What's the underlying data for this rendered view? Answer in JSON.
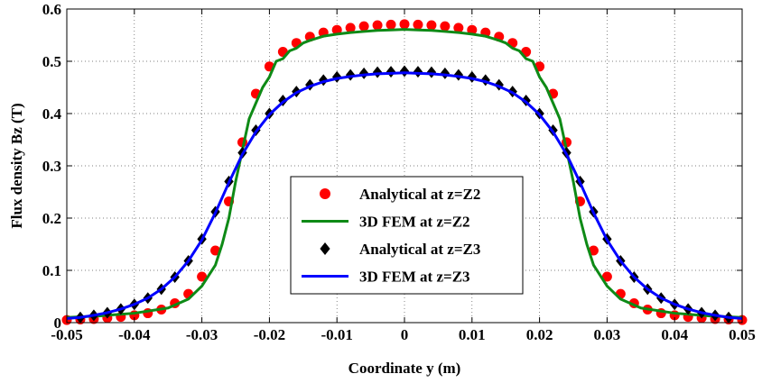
{
  "chart_data": {
    "type": "scatter",
    "xlabel": "Coordinate y (m)",
    "ylabel": "Flux density Bz (T)",
    "xlim": [
      -0.05,
      0.05
    ],
    "ylim": [
      0,
      0.6
    ],
    "x_ticks": [
      "-0.05",
      "-0.04",
      "-0.03",
      "-0.02",
      "-0.01",
      "0",
      "0.01",
      "0.02",
      "0.03",
      "0.04",
      "0.05"
    ],
    "y_ticks": [
      "0",
      "0.1",
      "0.2",
      "0.3",
      "0.4",
      "0.5",
      "0.6"
    ],
    "grid": true,
    "legend_position": "center",
    "series": [
      {
        "name": "Analytical at z=Z2",
        "style": "markers",
        "marker": "circle",
        "color": "#ff0000",
        "x": [
          -0.05,
          -0.048,
          -0.046,
          -0.044,
          -0.042,
          -0.04,
          -0.038,
          -0.036,
          -0.034,
          -0.032,
          -0.03,
          -0.028,
          -0.026,
          -0.024,
          -0.022,
          -0.02,
          -0.018,
          -0.016,
          -0.014,
          -0.012,
          -0.01,
          -0.008,
          -0.006,
          -0.004,
          -0.002,
          0,
          0.002,
          0.004,
          0.006,
          0.008,
          0.01,
          0.012,
          0.014,
          0.016,
          0.018,
          0.02,
          0.022,
          0.024,
          0.026,
          0.028,
          0.03,
          0.032,
          0.034,
          0.036,
          0.038,
          0.04,
          0.042,
          0.044,
          0.046,
          0.048,
          0.05
        ],
        "y": [
          0.005,
          0.006,
          0.007,
          0.009,
          0.011,
          0.014,
          0.018,
          0.025,
          0.037,
          0.055,
          0.088,
          0.138,
          0.232,
          0.345,
          0.438,
          0.49,
          0.518,
          0.535,
          0.547,
          0.555,
          0.56,
          0.564,
          0.567,
          0.569,
          0.57,
          0.571,
          0.57,
          0.569,
          0.567,
          0.564,
          0.56,
          0.555,
          0.547,
          0.535,
          0.518,
          0.49,
          0.438,
          0.345,
          0.232,
          0.138,
          0.088,
          0.055,
          0.037,
          0.025,
          0.018,
          0.014,
          0.011,
          0.009,
          0.007,
          0.006,
          0.005
        ]
      },
      {
        "name": "3D FEM at z=Z2",
        "style": "line",
        "color": "#0e8a16",
        "x": [
          -0.05,
          -0.045,
          -0.04,
          -0.035,
          -0.032,
          -0.03,
          -0.028,
          -0.027,
          -0.026,
          -0.025,
          -0.024,
          -0.023,
          -0.022,
          -0.021,
          -0.02,
          -0.019,
          -0.018,
          -0.017,
          -0.016,
          -0.015,
          -0.014,
          -0.012,
          -0.01,
          -0.008,
          -0.006,
          -0.004,
          -0.002,
          0,
          0.002,
          0.004,
          0.006,
          0.008,
          0.01,
          0.012,
          0.014,
          0.015,
          0.016,
          0.017,
          0.018,
          0.019,
          0.02,
          0.021,
          0.022,
          0.023,
          0.024,
          0.025,
          0.026,
          0.027,
          0.028,
          0.03,
          0.032,
          0.035,
          0.04,
          0.045,
          0.05
        ],
        "y": [
          0.01,
          0.013,
          0.018,
          0.028,
          0.045,
          0.07,
          0.11,
          0.15,
          0.2,
          0.27,
          0.33,
          0.39,
          0.42,
          0.45,
          0.47,
          0.5,
          0.505,
          0.52,
          0.525,
          0.535,
          0.54,
          0.548,
          0.552,
          0.555,
          0.557,
          0.559,
          0.56,
          0.561,
          0.56,
          0.559,
          0.557,
          0.555,
          0.552,
          0.548,
          0.54,
          0.535,
          0.525,
          0.52,
          0.505,
          0.5,
          0.47,
          0.45,
          0.42,
          0.39,
          0.33,
          0.27,
          0.2,
          0.15,
          0.11,
          0.07,
          0.045,
          0.028,
          0.018,
          0.013,
          0.01
        ]
      },
      {
        "name": "Analytical at z=Z3",
        "style": "markers",
        "marker": "diamond",
        "color": "#000000",
        "x": [
          -0.048,
          -0.046,
          -0.044,
          -0.042,
          -0.04,
          -0.038,
          -0.036,
          -0.034,
          -0.032,
          -0.03,
          -0.028,
          -0.026,
          -0.024,
          -0.022,
          -0.02,
          -0.018,
          -0.016,
          -0.014,
          -0.012,
          -0.01,
          -0.008,
          -0.006,
          -0.004,
          -0.002,
          0,
          0.002,
          0.004,
          0.006,
          0.008,
          0.01,
          0.012,
          0.014,
          0.016,
          0.018,
          0.02,
          0.022,
          0.024,
          0.026,
          0.028,
          0.03,
          0.032,
          0.034,
          0.036,
          0.038,
          0.04,
          0.042,
          0.044,
          0.046,
          0.048
        ],
        "y": [
          0.01,
          0.014,
          0.019,
          0.026,
          0.035,
          0.047,
          0.064,
          0.087,
          0.118,
          0.16,
          0.212,
          0.27,
          0.325,
          0.368,
          0.4,
          0.425,
          0.442,
          0.455,
          0.464,
          0.47,
          0.474,
          0.477,
          0.479,
          0.48,
          0.481,
          0.48,
          0.479,
          0.477,
          0.474,
          0.47,
          0.464,
          0.455,
          0.442,
          0.425,
          0.4,
          0.368,
          0.325,
          0.27,
          0.212,
          0.16,
          0.118,
          0.087,
          0.064,
          0.047,
          0.035,
          0.026,
          0.019,
          0.014,
          0.01
        ]
      },
      {
        "name": "3D FEM at z=Z3",
        "style": "line",
        "color": "#0000ff",
        "x": [
          -0.05,
          -0.048,
          -0.046,
          -0.044,
          -0.042,
          -0.04,
          -0.038,
          -0.036,
          -0.034,
          -0.032,
          -0.03,
          -0.028,
          -0.026,
          -0.024,
          -0.022,
          -0.02,
          -0.018,
          -0.016,
          -0.014,
          -0.012,
          -0.01,
          -0.008,
          -0.006,
          -0.004,
          -0.002,
          0,
          0.002,
          0.004,
          0.006,
          0.008,
          0.01,
          0.012,
          0.014,
          0.016,
          0.018,
          0.02,
          0.022,
          0.024,
          0.026,
          0.028,
          0.03,
          0.032,
          0.034,
          0.036,
          0.038,
          0.04,
          0.042,
          0.044,
          0.046,
          0.048,
          0.05
        ],
        "y": [
          0.008,
          0.01,
          0.014,
          0.019,
          0.026,
          0.035,
          0.047,
          0.064,
          0.087,
          0.118,
          0.158,
          0.21,
          0.268,
          0.322,
          0.365,
          0.398,
          0.422,
          0.44,
          0.452,
          0.461,
          0.467,
          0.471,
          0.474,
          0.476,
          0.477,
          0.478,
          0.477,
          0.476,
          0.474,
          0.471,
          0.467,
          0.461,
          0.452,
          0.44,
          0.422,
          0.398,
          0.365,
          0.322,
          0.268,
          0.21,
          0.158,
          0.118,
          0.087,
          0.064,
          0.047,
          0.035,
          0.026,
          0.019,
          0.014,
          0.01,
          0.008
        ]
      }
    ]
  }
}
